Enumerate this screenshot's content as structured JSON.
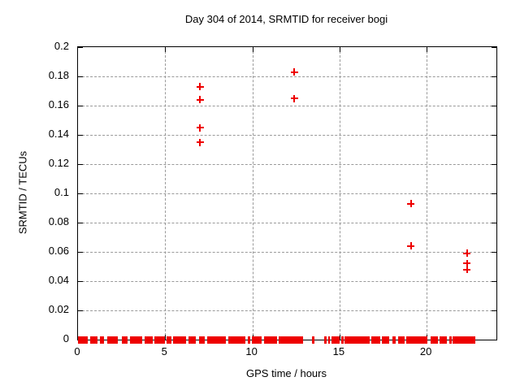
{
  "chart_data": {
    "type": "scatter",
    "title": "Day 304 of 2014, SRMTID for receiver bogi",
    "xlabel": "GPS time / hours",
    "ylabel": "SRMTID / TECUs",
    "xlim": [
      0,
      24
    ],
    "ylim": [
      0,
      0.2
    ],
    "grid": true,
    "legend": "none",
    "marker": "plus",
    "xticks": {
      "values": [
        0,
        5,
        10,
        15,
        20
      ],
      "labels": [
        "0",
        "5",
        "10",
        "15",
        "20"
      ]
    },
    "yticks": {
      "values": [
        0,
        0.02,
        0.04,
        0.06,
        0.08,
        0.1,
        0.12,
        0.14,
        0.16,
        0.18,
        0.2
      ],
      "labels": [
        "0",
        "0.02",
        "0.04",
        "0.06",
        "0.08",
        "0.1",
        "0.12",
        "0.14",
        "0.16",
        "0.18",
        "0.2"
      ]
    },
    "series": [
      {
        "name": "SRMTID",
        "points": [
          [
            7.0,
            0.173
          ],
          [
            7.0,
            0.164
          ],
          [
            7.0,
            0.145
          ],
          [
            7.0,
            0.135
          ],
          [
            12.4,
            0.183
          ],
          [
            12.4,
            0.165
          ],
          [
            19.1,
            0.093
          ],
          [
            19.1,
            0.064
          ],
          [
            22.3,
            0.059
          ],
          [
            22.3,
            0.052
          ],
          [
            22.3,
            0.048
          ]
        ]
      }
    ],
    "baseline_value": 0,
    "baseline_segments": [
      [
        0.0,
        0.55
      ],
      [
        0.7,
        1.12
      ],
      [
        1.25,
        1.5
      ],
      [
        1.68,
        2.27
      ],
      [
        2.5,
        2.84
      ],
      [
        2.96,
        3.7
      ],
      [
        3.82,
        4.28
      ],
      [
        4.38,
        4.97
      ],
      [
        5.1,
        5.34
      ],
      [
        5.45,
        6.18
      ],
      [
        6.32,
        6.78
      ],
      [
        6.95,
        7.28
      ],
      [
        7.4,
        8.5
      ],
      [
        8.62,
        9.62
      ],
      [
        9.75,
        9.88
      ],
      [
        9.98,
        10.55
      ],
      [
        10.68,
        11.41
      ],
      [
        11.52,
        12.89
      ],
      [
        13.43,
        13.57
      ],
      [
        14.13,
        14.24
      ],
      [
        14.34,
        14.45
      ],
      [
        14.52,
        15.02
      ],
      [
        15.1,
        15.26
      ],
      [
        15.3,
        16.74
      ],
      [
        16.82,
        17.33
      ],
      [
        17.42,
        17.87
      ],
      [
        18.03,
        18.21
      ],
      [
        18.34,
        18.73
      ],
      [
        18.82,
        20.03
      ],
      [
        20.21,
        20.65
      ],
      [
        20.72,
        21.15
      ],
      [
        21.3,
        21.43
      ],
      [
        21.5,
        22.78
      ]
    ]
  },
  "colors": {
    "marker": "#ee0000",
    "grid": "#9a9a9a",
    "axis": "#000000",
    "background": "#ffffff",
    "text": "#000000"
  }
}
